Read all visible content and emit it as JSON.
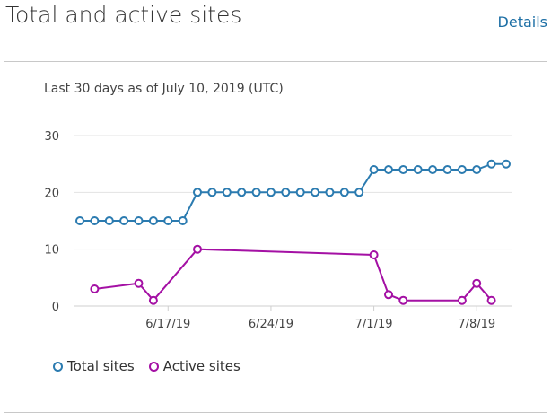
{
  "header": {
    "title": "Total and active sites",
    "details_label": "Details"
  },
  "card": {
    "subtitle": "Last 30 days as of July 10, 2019 (UTC)"
  },
  "colors": {
    "total": "#2b7bb0",
    "active": "#a410a4",
    "grid": "#e3e3e3",
    "axis": "#cfcfcf"
  },
  "chart_data": {
    "type": "line",
    "title": "",
    "xlabel": "",
    "ylabel": "",
    "ylim": [
      0,
      30
    ],
    "yticks": [
      0,
      10,
      20,
      30
    ],
    "grid": true,
    "legend_position": "bottom-left",
    "x": [
      "6/11/19",
      "6/12/19",
      "6/13/19",
      "6/14/19",
      "6/15/19",
      "6/16/19",
      "6/17/19",
      "6/18/19",
      "6/19/19",
      "6/20/19",
      "6/21/19",
      "6/22/19",
      "6/23/19",
      "6/24/19",
      "6/25/19",
      "6/26/19",
      "6/27/19",
      "6/28/19",
      "6/29/19",
      "6/30/19",
      "7/1/19",
      "7/2/19",
      "7/3/19",
      "7/4/19",
      "7/5/19",
      "7/6/19",
      "7/7/19",
      "7/8/19",
      "7/9/19",
      "7/10/19"
    ],
    "xtick_labels": [
      "6/17/19",
      "6/24/19",
      "7/1/19",
      "7/8/19"
    ],
    "series": [
      {
        "name": "Total sites",
        "values": [
          15,
          15,
          15,
          15,
          15,
          15,
          15,
          15,
          20,
          20,
          20,
          20,
          20,
          20,
          20,
          20,
          20,
          20,
          20,
          20,
          24,
          24,
          24,
          24,
          24,
          24,
          24,
          24,
          25,
          25
        ]
      },
      {
        "name": "Active sites",
        "values": [
          null,
          3,
          null,
          null,
          4,
          1,
          null,
          null,
          10,
          null,
          null,
          null,
          null,
          null,
          null,
          null,
          null,
          null,
          null,
          null,
          9,
          2,
          1,
          null,
          null,
          null,
          1,
          4,
          1,
          null
        ]
      }
    ]
  }
}
